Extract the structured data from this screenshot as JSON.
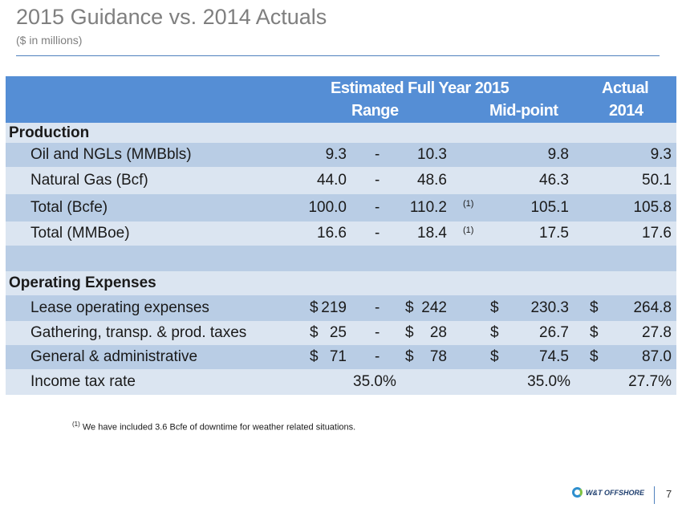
{
  "title": "2015 Guidance vs. 2014 Actuals",
  "subtitle": "($ in millions)",
  "header": {
    "estimated": "Estimated Full Year 2015",
    "actual": "Actual",
    "range": "Range",
    "midpoint": "Mid-point",
    "year": "2014"
  },
  "sections": {
    "production": "Production",
    "opex": "Operating Expenses"
  },
  "rows": [
    {
      "label": "Oil and NGLs (MMBbls)",
      "low": "9.3",
      "dash": "-",
      "high": "10.3",
      "fn": "",
      "mid": "9.8",
      "actual": "9.3"
    },
    {
      "label": "Natural Gas (Bcf)",
      "low": "44.0",
      "dash": "-",
      "high": "48.6",
      "fn": "",
      "mid": "46.3",
      "actual": "50.1"
    },
    {
      "label": "Total (Bcfe)",
      "low": "100.0",
      "dash": "-",
      "high": "110.2",
      "fn": "(1)",
      "mid": "105.1",
      "actual": "105.8"
    },
    {
      "label": "Total (MMBoe)",
      "low": "16.6",
      "dash": "-",
      "high": "18.4",
      "fn": "(1)",
      "mid": "17.5",
      "actual": "17.6"
    }
  ],
  "opex_rows": [
    {
      "label": "Lease operating expenses",
      "lowc": "$",
      "low": "219",
      "dash": "-",
      "highc": "$",
      "high": "242",
      "midc": "$",
      "mid": "230.3",
      "actc": "$",
      "actual": "264.8"
    },
    {
      "label": "Gathering, transp. & prod. taxes",
      "lowc": "$",
      "low": "25",
      "dash": "-",
      "highc": "$",
      "high": "28",
      "midc": "$",
      "mid": "26.7",
      "actc": "$",
      "actual": "27.8"
    },
    {
      "label": "General & administrative",
      "lowc": "$",
      "low": "71",
      "dash": "-",
      "highc": "$",
      "high": "78",
      "midc": "$",
      "mid": "74.5",
      "actc": "$",
      "actual": "87.0"
    }
  ],
  "tax": {
    "label": "Income tax rate",
    "range": "35.0%",
    "mid": "35.0%",
    "actual": "27.7%"
  },
  "footnote": {
    "marker": "(1)",
    "text": " We have included 3.6 Bcfe of downtime for weather related situations."
  },
  "logo_text": "W&T OFFSHORE",
  "page_number": "7"
}
